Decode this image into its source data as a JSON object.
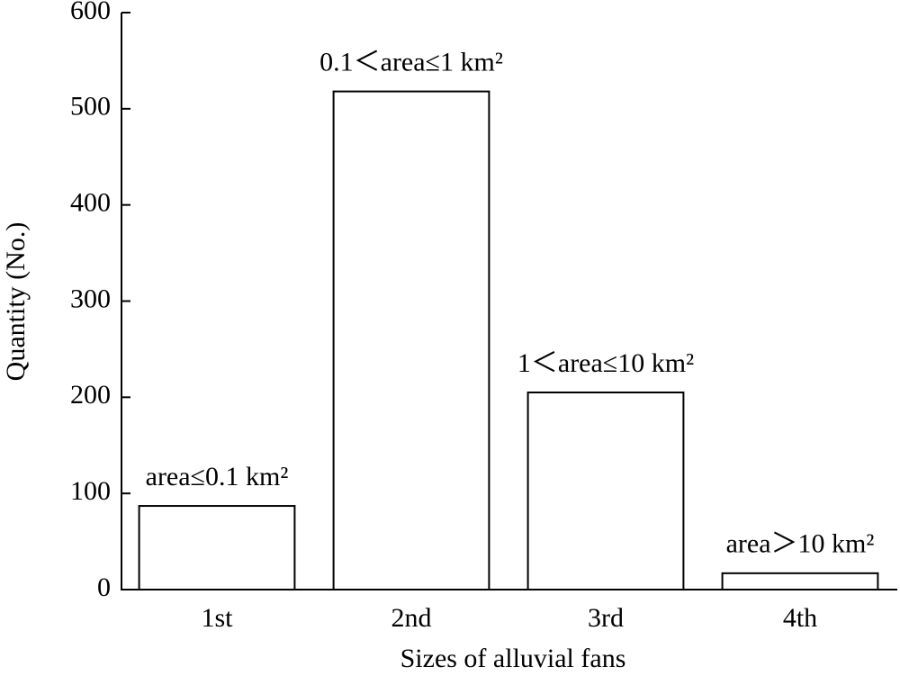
{
  "chart_data": {
    "type": "bar",
    "x_label": "Sizes of alluvial fans",
    "y_label": "Quantity (No.)",
    "categories": [
      "1st",
      "2nd",
      "3rd",
      "4th"
    ],
    "values": [
      87,
      518,
      205,
      17
    ],
    "annotations": [
      "area≤0.1 km²",
      "0.1＜area≤1 km²",
      "1＜area≤10 km²",
      "area＞10 km²"
    ],
    "color": "#ffffff",
    "edge_color": "#000000",
    "ylim": [
      0,
      600
    ],
    "yticks": [
      0,
      100,
      200,
      300,
      400,
      500,
      600
    ],
    "grid": false
  }
}
